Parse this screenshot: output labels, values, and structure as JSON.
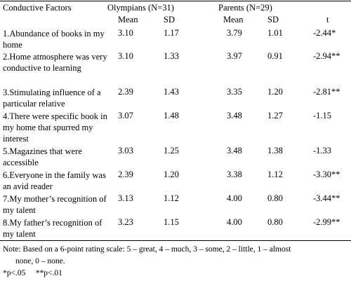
{
  "table": {
    "headers": {
      "factors": "Conductive Factors",
      "olympians": "Olympians (N=31)",
      "parents": "Parents (N=29)",
      "olympians_mean": "Mean",
      "olympians_sd": "SD",
      "parents_mean": "Mean",
      "parents_sd": "SD",
      "t": "t"
    },
    "rows": [
      {
        "factor": "1.Abundance of books in my home",
        "o_mean": "3.10",
        "o_sd": "1.17",
        "p_mean": "3.79",
        "p_sd": "1.01",
        "t": "-2.44*"
      },
      {
        "factor": "2.Home atmosphere was very conductive to learning",
        "o_mean": "3.10",
        "o_sd": "1.33",
        "p_mean": "3.97",
        "p_sd": "0.91",
        "t": "-2.94**"
      },
      {
        "factor": "3.Stimulating influence of a particular relative",
        "o_mean": "2.39",
        "o_sd": "1.43",
        "p_mean": "3.35",
        "p_sd": "1.20",
        "t": "-2.81**"
      },
      {
        "factor": "4.There were specific book in my home that spurred my interest",
        "o_mean": "3.07",
        "o_sd": "1.48",
        "p_mean": "3.48",
        "p_sd": "1.27",
        "t": "-1.15"
      },
      {
        "factor": "5.Magazines that were accessible",
        "o_mean": "3.03",
        "o_sd": "1.25",
        "p_mean": "3.48",
        "p_sd": "1.38",
        "t": "-1.33"
      },
      {
        "factor": "6.Everyone in the family was an avid reader",
        "o_mean": "2.39",
        "o_sd": "1.20",
        "p_mean": "3.38",
        "p_sd": "1.12",
        "t": "-3.30**"
      },
      {
        "factor": "7.My mother’s recognition of my talent",
        "o_mean": "3.13",
        "o_sd": "1.12",
        "p_mean": "4.00",
        "p_sd": "0.80",
        "t": "-3.44**"
      },
      {
        "factor": "8.My father’s recognition of my talent",
        "o_mean": "3.23",
        "o_sd": "1.15",
        "p_mean": "4.00",
        "p_sd": "0.80",
        "t": "-2.99**"
      }
    ]
  },
  "notes": {
    "line1": "Note: Based on a 6-point rating scale: 5 – great, 4 – much, 3 – some, 2 – little, 1 – almost",
    "line2": "none, 0 – none.",
    "line3": "*p<.05     **p<.01"
  }
}
